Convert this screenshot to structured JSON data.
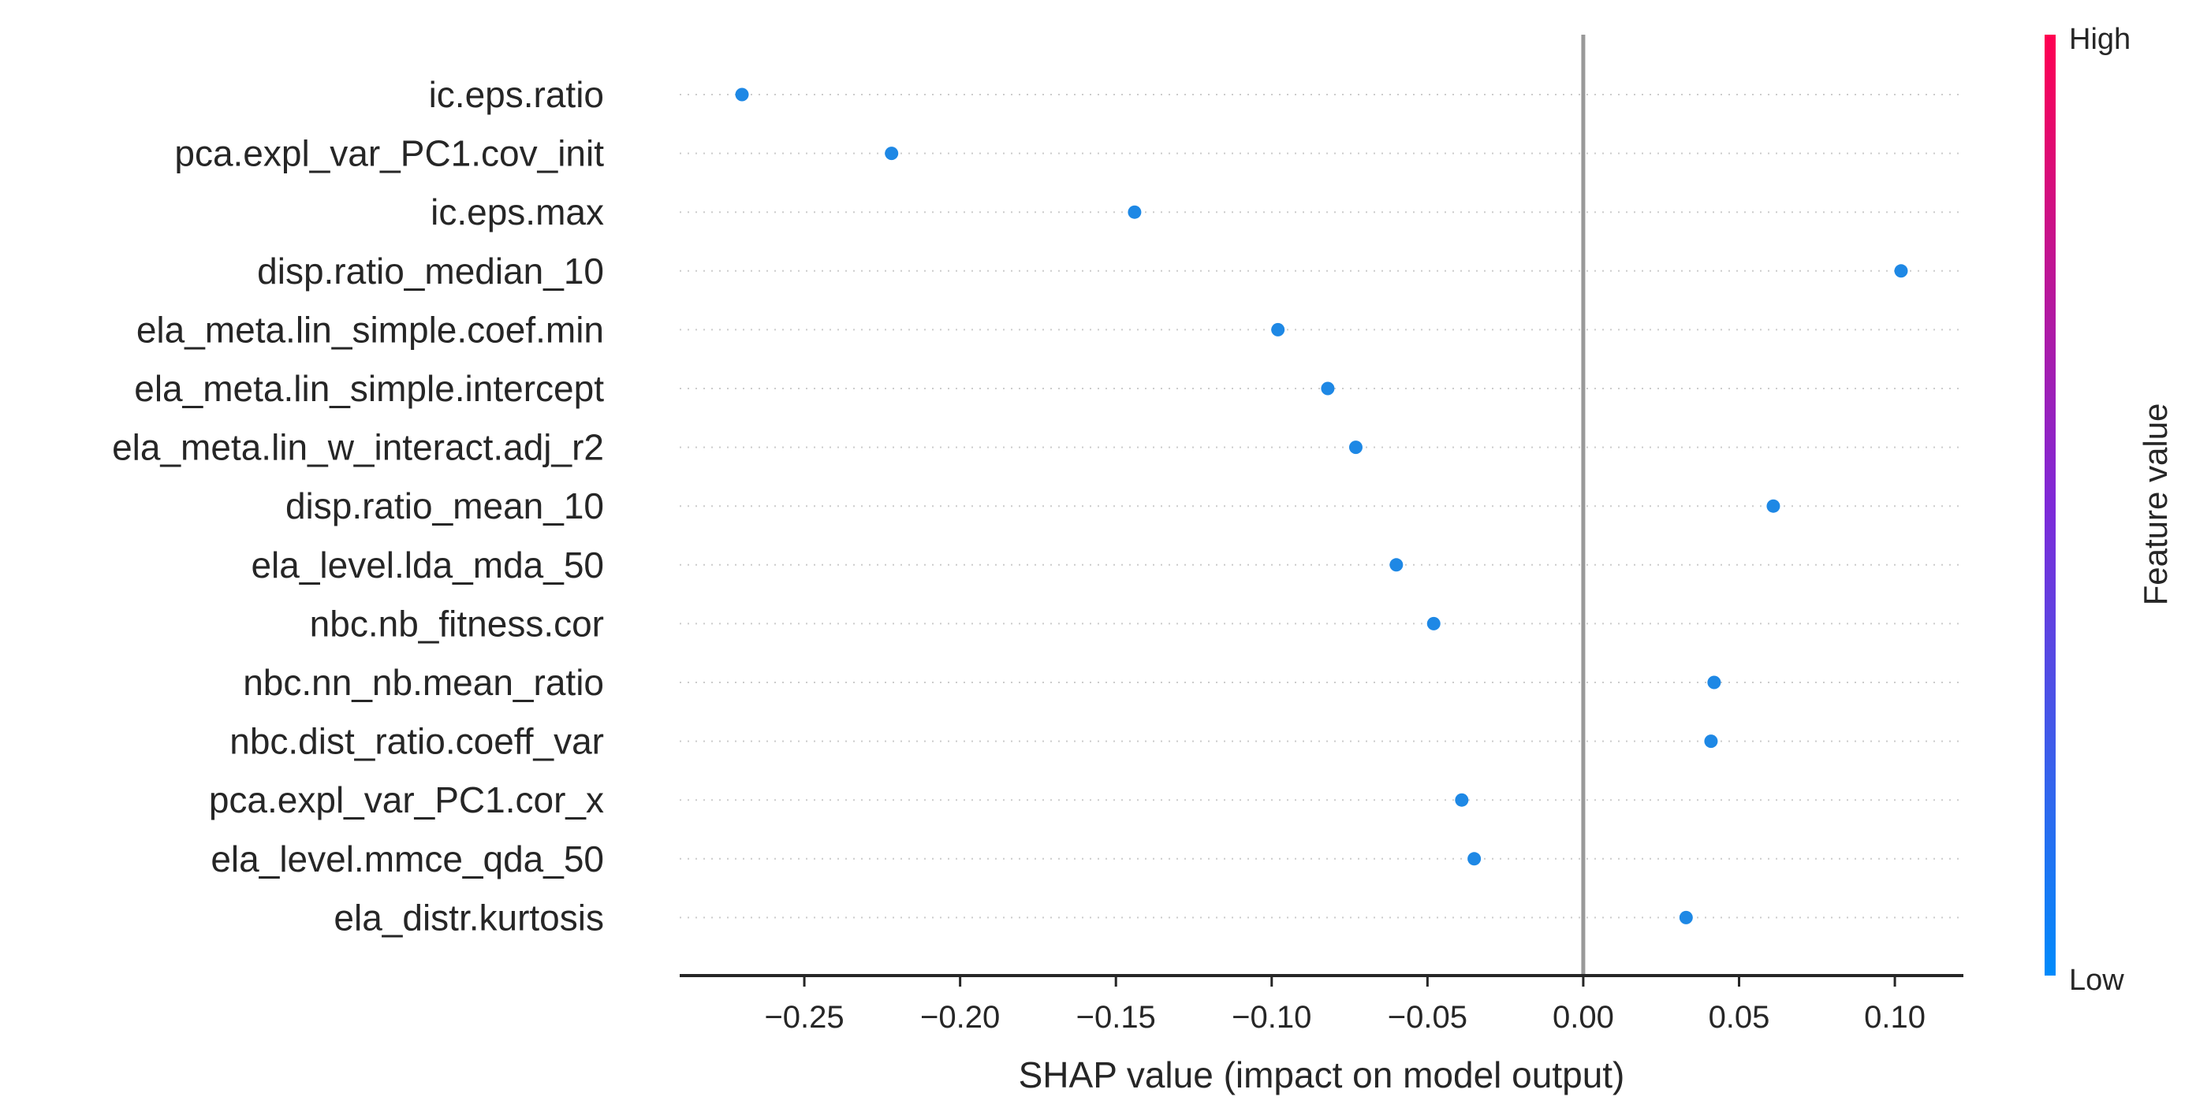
{
  "chart_data": {
    "type": "scatter",
    "title": "",
    "xlabel": "SHAP value (impact on model output)",
    "ylabel": "",
    "xlim": [
      -0.29,
      0.122
    ],
    "xticks": [
      -0.25,
      -0.2,
      -0.15,
      -0.1,
      -0.05,
      0.0,
      0.05,
      0.1
    ],
    "xtick_labels": [
      "−0.25",
      "−0.20",
      "−0.15",
      "−0.10",
      "−0.05",
      "0.00",
      "0.05",
      "0.10"
    ],
    "reference_line_x": 0.0,
    "grid": "horizontal dotted row guides",
    "point_color": "#1E88E5",
    "features": [
      "ic.eps.ratio",
      "pca.expl_var_PC1.cov_init",
      "ic.eps.max",
      "disp.ratio_median_10",
      "ela_meta.lin_simple.coef.min",
      "ela_meta.lin_simple.intercept",
      "ela_meta.lin_w_interact.adj_r2",
      "disp.ratio_mean_10",
      "ela_level.lda_mda_50",
      "nbc.nb_fitness.cor",
      "nbc.nn_nb.mean_ratio",
      "nbc.dist_ratio.coeff_var",
      "pca.expl_var_PC1.cor_x",
      "ela_level.mmce_qda_50",
      "ela_distr.kurtosis"
    ],
    "values": [
      -0.27,
      -0.222,
      -0.144,
      0.102,
      -0.098,
      -0.082,
      -0.073,
      0.061,
      -0.06,
      -0.048,
      0.042,
      0.041,
      -0.039,
      -0.035,
      0.033
    ],
    "colorbar": {
      "title": "Feature value",
      "high_label": "High",
      "low_label": "Low",
      "high_color": "#FF0051",
      "mid_color": "#7E29D8",
      "low_color": "#008BFB"
    }
  }
}
